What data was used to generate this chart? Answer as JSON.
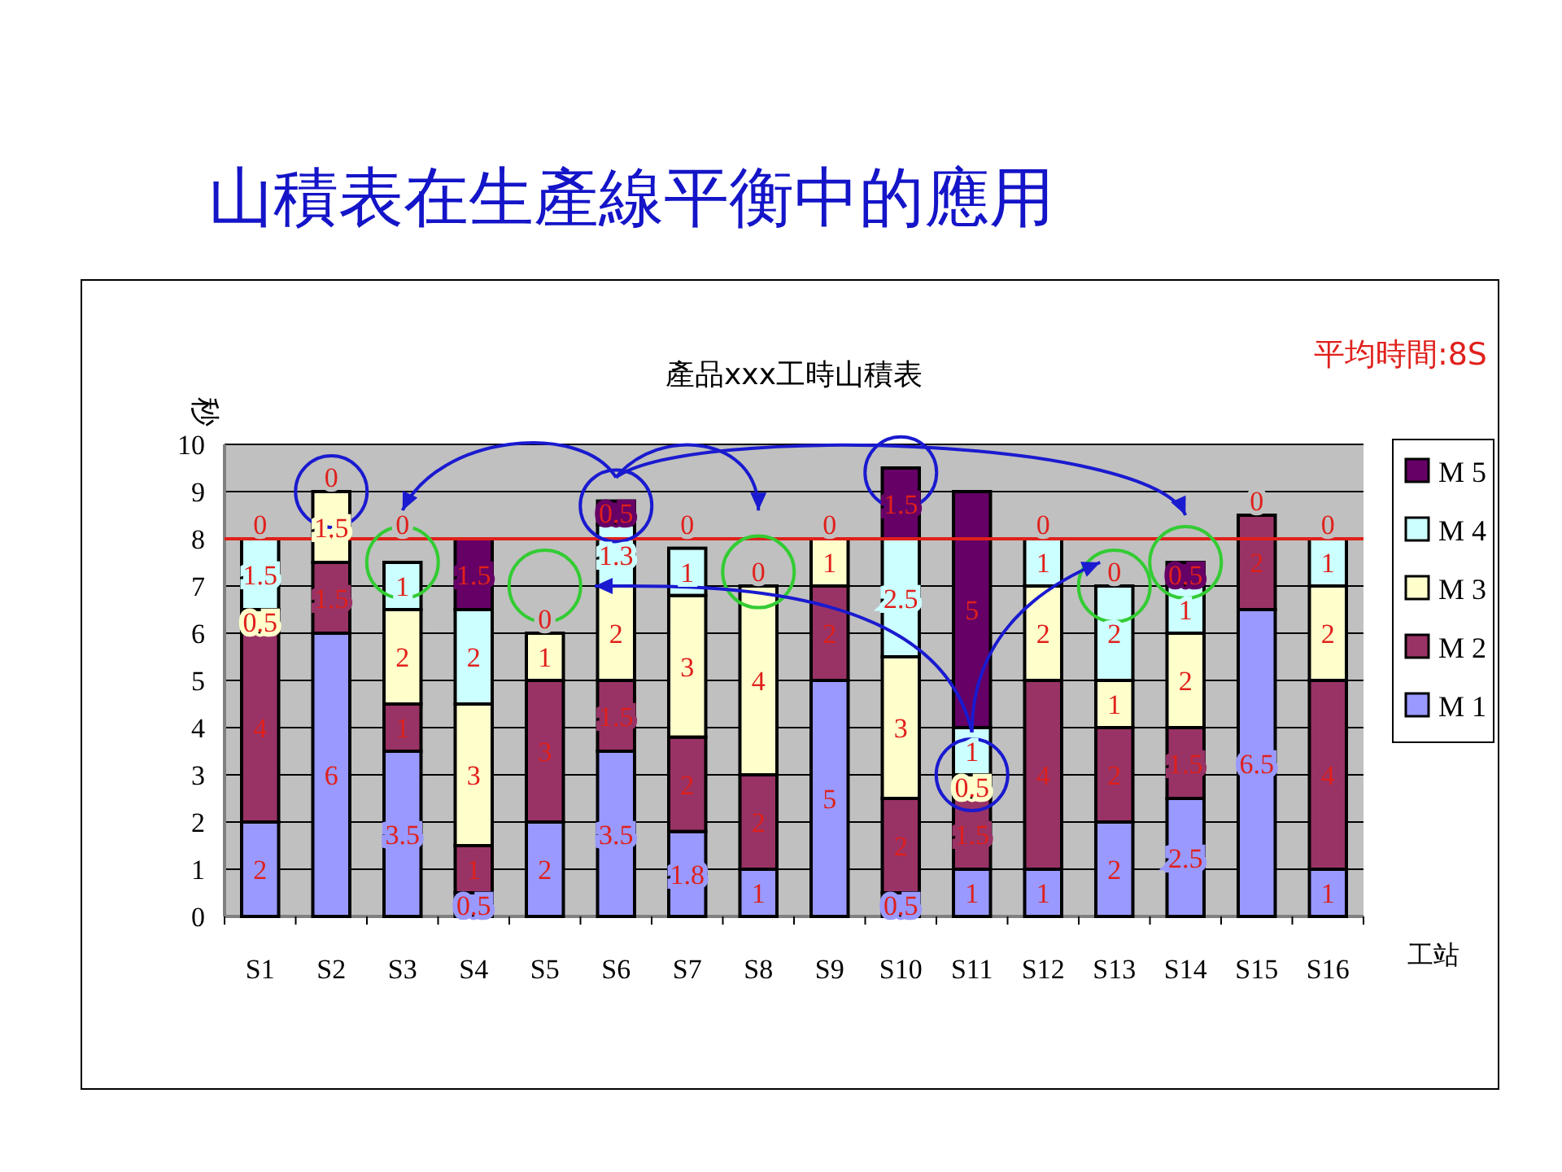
{
  "chart_data": {
    "type": "bar",
    "stacked": true,
    "title": "山積表在生產線平衡中的應用",
    "subtitle": "產品xxx工時山積表",
    "ylabel": "秒",
    "xlabel": "工站",
    "categories": [
      "S1",
      "S2",
      "S3",
      "S4",
      "S5",
      "S6",
      "S7",
      "S8",
      "S9",
      "S10",
      "S11",
      "S12",
      "S13",
      "S14",
      "S15",
      "S16"
    ],
    "series": [
      {
        "name": "M 1",
        "color": "#9999ff",
        "values": [
          2,
          6,
          3.5,
          0.5,
          2,
          3.5,
          1.8,
          1,
          5,
          0.5,
          1,
          1,
          2,
          2.5,
          6.5,
          1
        ]
      },
      {
        "name": "M 2",
        "color": "#993366",
        "values": [
          4,
          1.5,
          1,
          1,
          3,
          1.5,
          2,
          2,
          2,
          2,
          1.5,
          4,
          2,
          1.5,
          2,
          4
        ]
      },
      {
        "name": "M 3",
        "color": "#ffffcc",
        "values": [
          0.5,
          1.5,
          2,
          3,
          1,
          2,
          3,
          4,
          1,
          3,
          0.5,
          2,
          1,
          2,
          null,
          2
        ]
      },
      {
        "name": "M 4",
        "color": "#ccffff",
        "values": [
          1.5,
          null,
          1,
          2,
          null,
          1.3,
          1,
          null,
          null,
          2.5,
          1,
          1,
          2,
          1,
          null,
          1
        ]
      },
      {
        "name": "M 5",
        "color": "#660066",
        "values": [
          0,
          0,
          0,
          1.5,
          0,
          0.5,
          0,
          0,
          0,
          1.5,
          5,
          0,
          0,
          0.5,
          0,
          0
        ]
      }
    ],
    "ylim": [
      0,
      10
    ],
    "yticks": [
      0,
      1,
      2,
      3,
      4,
      5,
      6,
      7,
      8,
      9,
      10
    ],
    "grid": "y",
    "legend": "right",
    "data_labels": true,
    "ref_lines": [
      {
        "axis": "y",
        "value": 8,
        "label": "平均時間:8S",
        "color": "#e0201b"
      }
    ]
  }
}
